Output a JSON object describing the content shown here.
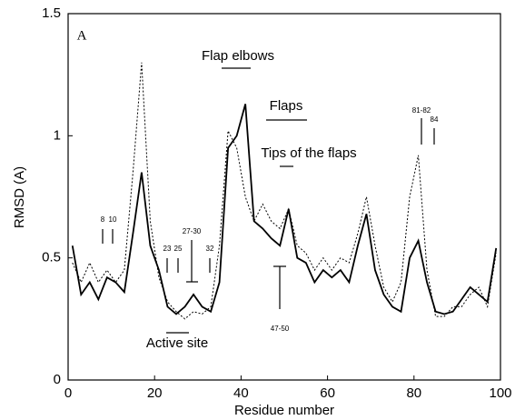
{
  "chart_data": {
    "type": "line",
    "x_label": "Residue number",
    "y_label": "RMSD (A)",
    "xlim": [
      0,
      100
    ],
    "ylim": [
      0,
      1.5
    ],
    "xticks": [
      0,
      20,
      40,
      60,
      80,
      100
    ],
    "yticks": [
      0,
      0.5,
      1,
      1.5
    ],
    "grid": false,
    "x": [
      1,
      3,
      5,
      7,
      9,
      11,
      13,
      15,
      17,
      19,
      21,
      23,
      25,
      27,
      29,
      31,
      33,
      35,
      37,
      39,
      41,
      43,
      45,
      47,
      49,
      51,
      53,
      55,
      57,
      59,
      61,
      63,
      65,
      67,
      69,
      71,
      73,
      75,
      77,
      79,
      81,
      83,
      85,
      87,
      89,
      91,
      93,
      95,
      97,
      99
    ],
    "series": [
      {
        "color": "#000000",
        "style": "solid",
        "values": [
          0.55,
          0.35,
          0.4,
          0.33,
          0.42,
          0.4,
          0.36,
          0.6,
          0.85,
          0.55,
          0.45,
          0.3,
          0.27,
          0.3,
          0.35,
          0.3,
          0.28,
          0.4,
          0.95,
          1.0,
          1.13,
          0.65,
          0.62,
          0.58,
          0.55,
          0.7,
          0.5,
          0.48,
          0.4,
          0.45,
          0.42,
          0.45,
          0.4,
          0.55,
          0.68,
          0.45,
          0.35,
          0.3,
          0.28,
          0.5,
          0.57,
          0.4,
          0.28,
          0.27,
          0.28,
          0.33,
          0.38,
          0.35,
          0.32,
          0.54
        ]
      },
      {
        "color": "#000000",
        "style": "dotted",
        "values": [
          0.48,
          0.4,
          0.48,
          0.4,
          0.45,
          0.4,
          0.45,
          0.85,
          1.3,
          0.65,
          0.42,
          0.32,
          0.28,
          0.25,
          0.28,
          0.27,
          0.3,
          0.55,
          1.02,
          0.95,
          0.75,
          0.65,
          0.72,
          0.65,
          0.62,
          0.7,
          0.55,
          0.52,
          0.45,
          0.5,
          0.45,
          0.5,
          0.48,
          0.6,
          0.75,
          0.55,
          0.38,
          0.32,
          0.4,
          0.75,
          0.92,
          0.45,
          0.26,
          0.26,
          0.3,
          0.3,
          0.35,
          0.38,
          0.3,
          0.52
        ]
      }
    ],
    "annotations": [
      "A",
      "Flap elbows",
      "Flaps",
      "Tips of the flaps",
      "81-82",
      "84",
      "8",
      "10",
      "23",
      "25",
      "27-30",
      "32",
      "47-50",
      "Active site"
    ]
  }
}
